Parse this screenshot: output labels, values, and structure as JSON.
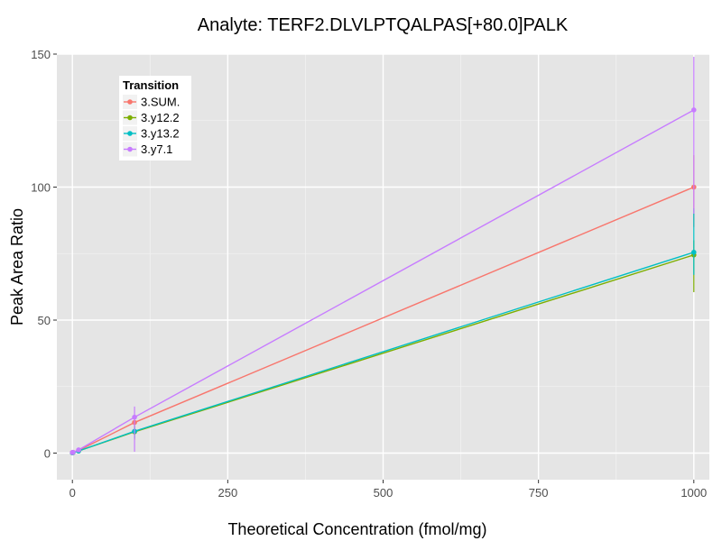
{
  "chart_data": {
    "type": "line",
    "title": "Analyte: TERF2.DLVLPTQALPAS[+80.0]PALK",
    "xlabel": "Theoretical Concentration (fmol/mg)",
    "ylabel": "Peak Area Ratio",
    "xlim": [
      -25,
      1025
    ],
    "ylim": [
      -10,
      150
    ],
    "xticks": [
      0,
      250,
      500,
      750,
      1000
    ],
    "yticks": [
      0,
      50,
      100,
      150
    ],
    "legend": {
      "title": "Transition",
      "position": "top-left"
    },
    "series": [
      {
        "name": "3.SUM.",
        "color": "#F8766D",
        "points": [
          {
            "x": 0,
            "y": 0.2,
            "lo": 0.2,
            "hi": 0.2
          },
          {
            "x": 1,
            "y": 0.3,
            "lo": 0.3,
            "hi": 0.3
          },
          {
            "x": 10,
            "y": 1.0,
            "lo": 0.8,
            "hi": 1.2
          },
          {
            "x": 100,
            "y": 11.5,
            "lo": 8.0,
            "hi": 14.0
          },
          {
            "x": 1000,
            "y": 100.0,
            "lo": 85.0,
            "hi": 112.0
          }
        ]
      },
      {
        "name": "3.y12.2",
        "color": "#7CAE00",
        "points": [
          {
            "x": 0,
            "y": 0.1,
            "lo": 0.1,
            "hi": 0.1
          },
          {
            "x": 1,
            "y": 0.2,
            "lo": 0.2,
            "hi": 0.2
          },
          {
            "x": 10,
            "y": 0.8,
            "lo": 0.6,
            "hi": 1.0
          },
          {
            "x": 100,
            "y": 8.0,
            "lo": 5.0,
            "hi": 10.0
          },
          {
            "x": 1000,
            "y": 74.5,
            "lo": 60.5,
            "hi": 80.0
          }
        ]
      },
      {
        "name": "3.y13.2",
        "color": "#00BFC4",
        "points": [
          {
            "x": 0,
            "y": 0.1,
            "lo": 0.1,
            "hi": 0.1
          },
          {
            "x": 1,
            "y": 0.2,
            "lo": 0.2,
            "hi": 0.2
          },
          {
            "x": 10,
            "y": 0.8,
            "lo": 0.6,
            "hi": 1.0
          },
          {
            "x": 100,
            "y": 8.2,
            "lo": 5.5,
            "hi": 10.5
          },
          {
            "x": 1000,
            "y": 75.5,
            "lo": 67.0,
            "hi": 92.0
          }
        ]
      },
      {
        "name": "3.y7.1",
        "color": "#C77CFF",
        "points": [
          {
            "x": 0,
            "y": 0.2,
            "lo": 0.2,
            "hi": 0.2
          },
          {
            "x": 1,
            "y": 0.3,
            "lo": 0.3,
            "hi": 0.3
          },
          {
            "x": 10,
            "y": 1.2,
            "lo": 1.0,
            "hi": 1.4
          },
          {
            "x": 100,
            "y": 13.5,
            "lo": 0.5,
            "hi": 17.5
          },
          {
            "x": 1000,
            "y": 129.0,
            "lo": 90.0,
            "hi": 149.0
          }
        ]
      }
    ]
  }
}
